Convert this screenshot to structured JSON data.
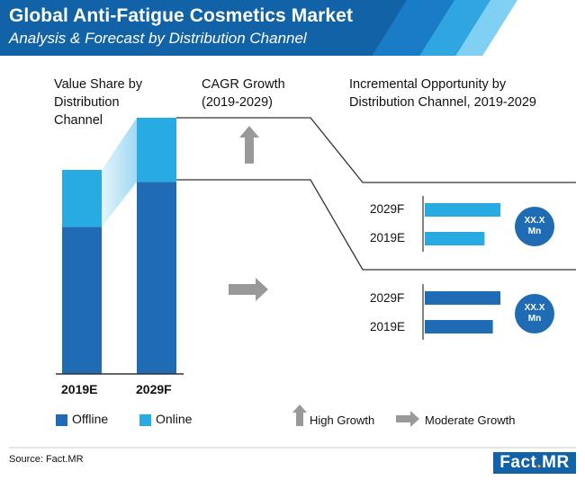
{
  "header": {
    "title": "Global Anti-Fatigue Cosmetics Market",
    "subtitle": "Analysis & Forecast by Distribution Channel"
  },
  "colors": {
    "header_bg": "#1262a8",
    "offline": "#1f6cb4",
    "online": "#27abe2",
    "arrow": "#999999",
    "badge": "#1f6cb4"
  },
  "sections": {
    "value_share": "Value Share by Distribution Channel",
    "cagr": "CAGR Growth (2019-2029)",
    "incremental": "Incremental Opportunity by Distribution Channel, 2019-2029"
  },
  "chart_data": [
    {
      "type": "bar",
      "title": "Value Share by Distribution Channel",
      "categories": [
        "2019E",
        "2029F"
      ],
      "series": [
        {
          "name": "Offline",
          "values": [
            72,
            75
          ]
        },
        {
          "name": "Online",
          "values": [
            28,
            25
          ]
        }
      ],
      "ylim": [
        0,
        100
      ],
      "legend": "bottom"
    },
    {
      "type": "bar",
      "title": "Incremental Opportunity - Online",
      "categories": [
        "2029F",
        "2019E"
      ],
      "values": [
        100,
        79
      ],
      "badge": "XX.X Mn",
      "cagr_indicator": "High Growth"
    },
    {
      "type": "bar",
      "title": "Incremental Opportunity - Offline",
      "categories": [
        "2029F",
        "2019E"
      ],
      "values": [
        100,
        90
      ],
      "badge": "XX.X Mn",
      "cagr_indicator": "Moderate Growth"
    }
  ],
  "legend": {
    "offline": "Offline",
    "online": "Online",
    "high_growth": "High Growth",
    "moderate_growth": "Moderate Growth"
  },
  "badges": {
    "online": [
      "XX.X",
      "Mn"
    ],
    "offline": [
      "XX.X",
      "Mn"
    ]
  },
  "source": "Source: Fact.MR",
  "logo": {
    "main": "Fact",
    "dot": ".",
    "suffix": "MR"
  }
}
